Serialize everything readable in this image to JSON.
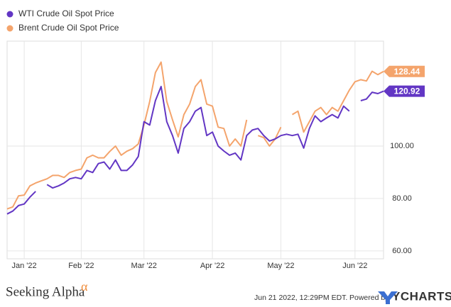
{
  "chart_data": {
    "type": "line",
    "categories": [
      null,
      null,
      null,
      "Jan '22",
      null,
      null,
      null,
      null,
      null,
      null,
      null,
      null,
      null,
      "Feb '22",
      null,
      null,
      null,
      null,
      null,
      null,
      null,
      null,
      null,
      null,
      "Mar '22",
      null,
      null,
      null,
      null,
      null,
      null,
      null,
      null,
      null,
      null,
      null,
      "Apr '22",
      null,
      null,
      null,
      null,
      null,
      null,
      null,
      null,
      null,
      null,
      null,
      "May '22",
      null,
      null,
      null,
      null,
      null,
      null,
      null,
      null,
      null,
      null,
      null,
      null,
      "Jun '22",
      null,
      null,
      null,
      null,
      null
    ],
    "series": [
      {
        "name": "WTI Crude Oil Spot Price",
        "color": "#6236c4",
        "values": [
          74.1,
          75.2,
          77.3,
          77.9,
          80.5,
          82.7,
          null,
          85.3,
          84,
          84.8,
          85.9,
          87.5,
          88,
          87.5,
          90.7,
          89.9,
          93.3,
          93.9,
          91.2,
          94.7,
          90.7,
          90.7,
          92.8,
          96,
          109.3,
          108,
          117.3,
          122.7,
          109.3,
          104,
          97.3,
          106.7,
          109.3,
          113.3,
          114.7,
          104,
          105.3,
          100,
          98.1,
          96.5,
          97.3,
          94.7,
          104,
          106.1,
          106.7,
          104,
          101.9,
          102.7,
          104,
          104.5,
          104,
          104.5,
          99.2,
          106.7,
          111.5,
          109.3,
          110.7,
          112,
          110.7,
          115.2,
          113.3,
          null,
          117.3,
          117.9,
          120.5,
          120,
          120.92
        ]
      },
      {
        "name": "Brent Crude Oil Spot Price",
        "color": "#f4a46c",
        "values": [
          76,
          76.8,
          81,
          81.3,
          84.8,
          85.9,
          86.7,
          87.5,
          88.8,
          88.8,
          88,
          89.9,
          90.7,
          91.2,
          95.5,
          96.5,
          95.5,
          95.5,
          97.9,
          100,
          96.5,
          98,
          99,
          100.8,
          108,
          117,
          128,
          132,
          117,
          110,
          103.5,
          112,
          116,
          122.7,
          125.3,
          116,
          115.2,
          107.2,
          106.7,
          100,
          102.7,
          100,
          110,
          null,
          104,
          103.2,
          100,
          102.7,
          107.2,
          null,
          112,
          113.3,
          105.3,
          109.3,
          113.3,
          114.7,
          112,
          114.7,
          113.3,
          117.3,
          121.3,
          124.5,
          125.3,
          124.8,
          128.5,
          127.2,
          128.44
        ]
      }
    ],
    "ylim": [
      57,
      140
    ],
    "yticks": [
      {
        "value": 60,
        "label": "60.00"
      },
      {
        "value": 80,
        "label": "80.00"
      },
      {
        "value": 100,
        "label": "100.00"
      }
    ],
    "grid": true,
    "legend": "top-left"
  },
  "footer": {
    "brand": "Seeking Alpha",
    "brand_mark": "α",
    "timestamp": "Jun 21 2022, 12:29PM EDT.",
    "powered_by": "Powered by",
    "provider": "YCHARTS"
  }
}
